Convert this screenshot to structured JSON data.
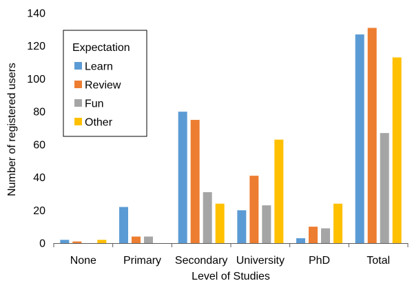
{
  "chart_data": {
    "type": "bar",
    "title": "",
    "xlabel": "Level of Studies",
    "ylabel": "Number of registered users",
    "ylim": [
      0,
      140
    ],
    "yticks": [
      0,
      20,
      40,
      60,
      80,
      100,
      120,
      140
    ],
    "categories": [
      "None",
      "Primary",
      "Secondary",
      "University",
      "PhD",
      "Total"
    ],
    "legend": {
      "title": "Expectation",
      "position": "top-left"
    },
    "series": [
      {
        "name": "Learn",
        "color": "#5B9BD5",
        "values": [
          2,
          22,
          80,
          20,
          3,
          127
        ]
      },
      {
        "name": "Review",
        "color": "#ED7D31",
        "values": [
          1,
          4,
          75,
          41,
          10,
          131
        ]
      },
      {
        "name": "Fun",
        "color": "#A5A5A5",
        "values": [
          0,
          4,
          31,
          23,
          9,
          67
        ]
      },
      {
        "name": "Other",
        "color": "#FFC000",
        "values": [
          2,
          0,
          24,
          63,
          24,
          113
        ]
      }
    ],
    "grid": false
  }
}
